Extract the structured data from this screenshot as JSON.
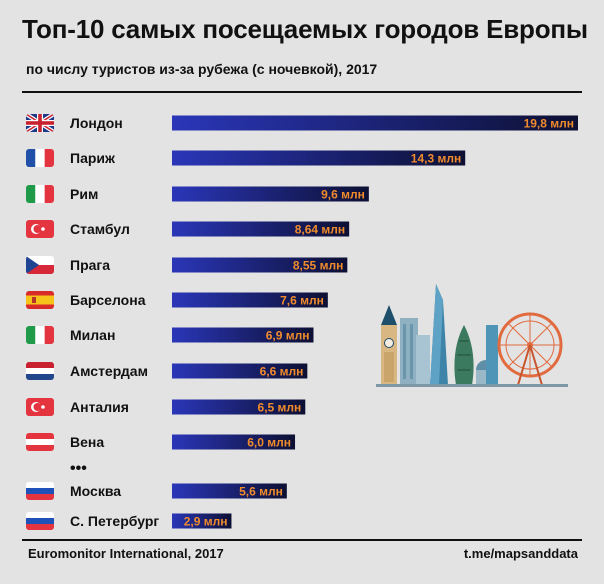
{
  "header": {
    "title": "Топ-10 самых посещаемых городов Европы",
    "subtitle": "по числу туристов из-за рубежа (с ночевкой), 2017"
  },
  "footer": {
    "source": "Euromonitor International, 2017",
    "credit": "t.me/mapsanddata"
  },
  "colors": {
    "bar_start": "#2a36b8",
    "bar_end": "#0d1033",
    "value_text": "#f08b2d",
    "background": "#e3e3e3"
  },
  "ellipsis": "•••",
  "chart_data": {
    "type": "bar",
    "orientation": "horizontal",
    "title": "Топ-10 самых посещаемых городов Европы",
    "subtitle": "по числу туристов из-за рубежа (с ночевкой), 2017",
    "unit": "млн",
    "categories": [
      "Лондон",
      "Париж",
      "Рим",
      "Стамбул",
      "Прага",
      "Барселона",
      "Милан",
      "Амстердам",
      "Анталия",
      "Вена",
      "Москва",
      "С. Петербург"
    ],
    "values": [
      19.8,
      14.3,
      9.6,
      8.64,
      8.55,
      7.6,
      6.9,
      6.6,
      6.5,
      6.0,
      5.6,
      2.9
    ],
    "value_labels": [
      "19,8 млн",
      "14,3 млн",
      "9,6 млн",
      "8,64 млн",
      "8,55 млн",
      "7,6 млн",
      "6,9 млн",
      "6,6 млн",
      "6,5 млн",
      "6,0 млн",
      "5,6 млн",
      "2,9 млн"
    ],
    "flags": [
      "flag-uk-icon",
      "flag-france-icon",
      "flag-italy-icon",
      "flag-turkey-icon",
      "flag-czech-icon",
      "flag-spain-icon",
      "flag-italy-icon",
      "flag-netherlands-icon",
      "flag-turkey-icon",
      "flag-austria-icon",
      "flag-russia-icon",
      "flag-russia-icon"
    ],
    "gap_after_index": 9,
    "xlim": [
      0,
      19.8
    ],
    "grid": false,
    "legend": "none"
  }
}
